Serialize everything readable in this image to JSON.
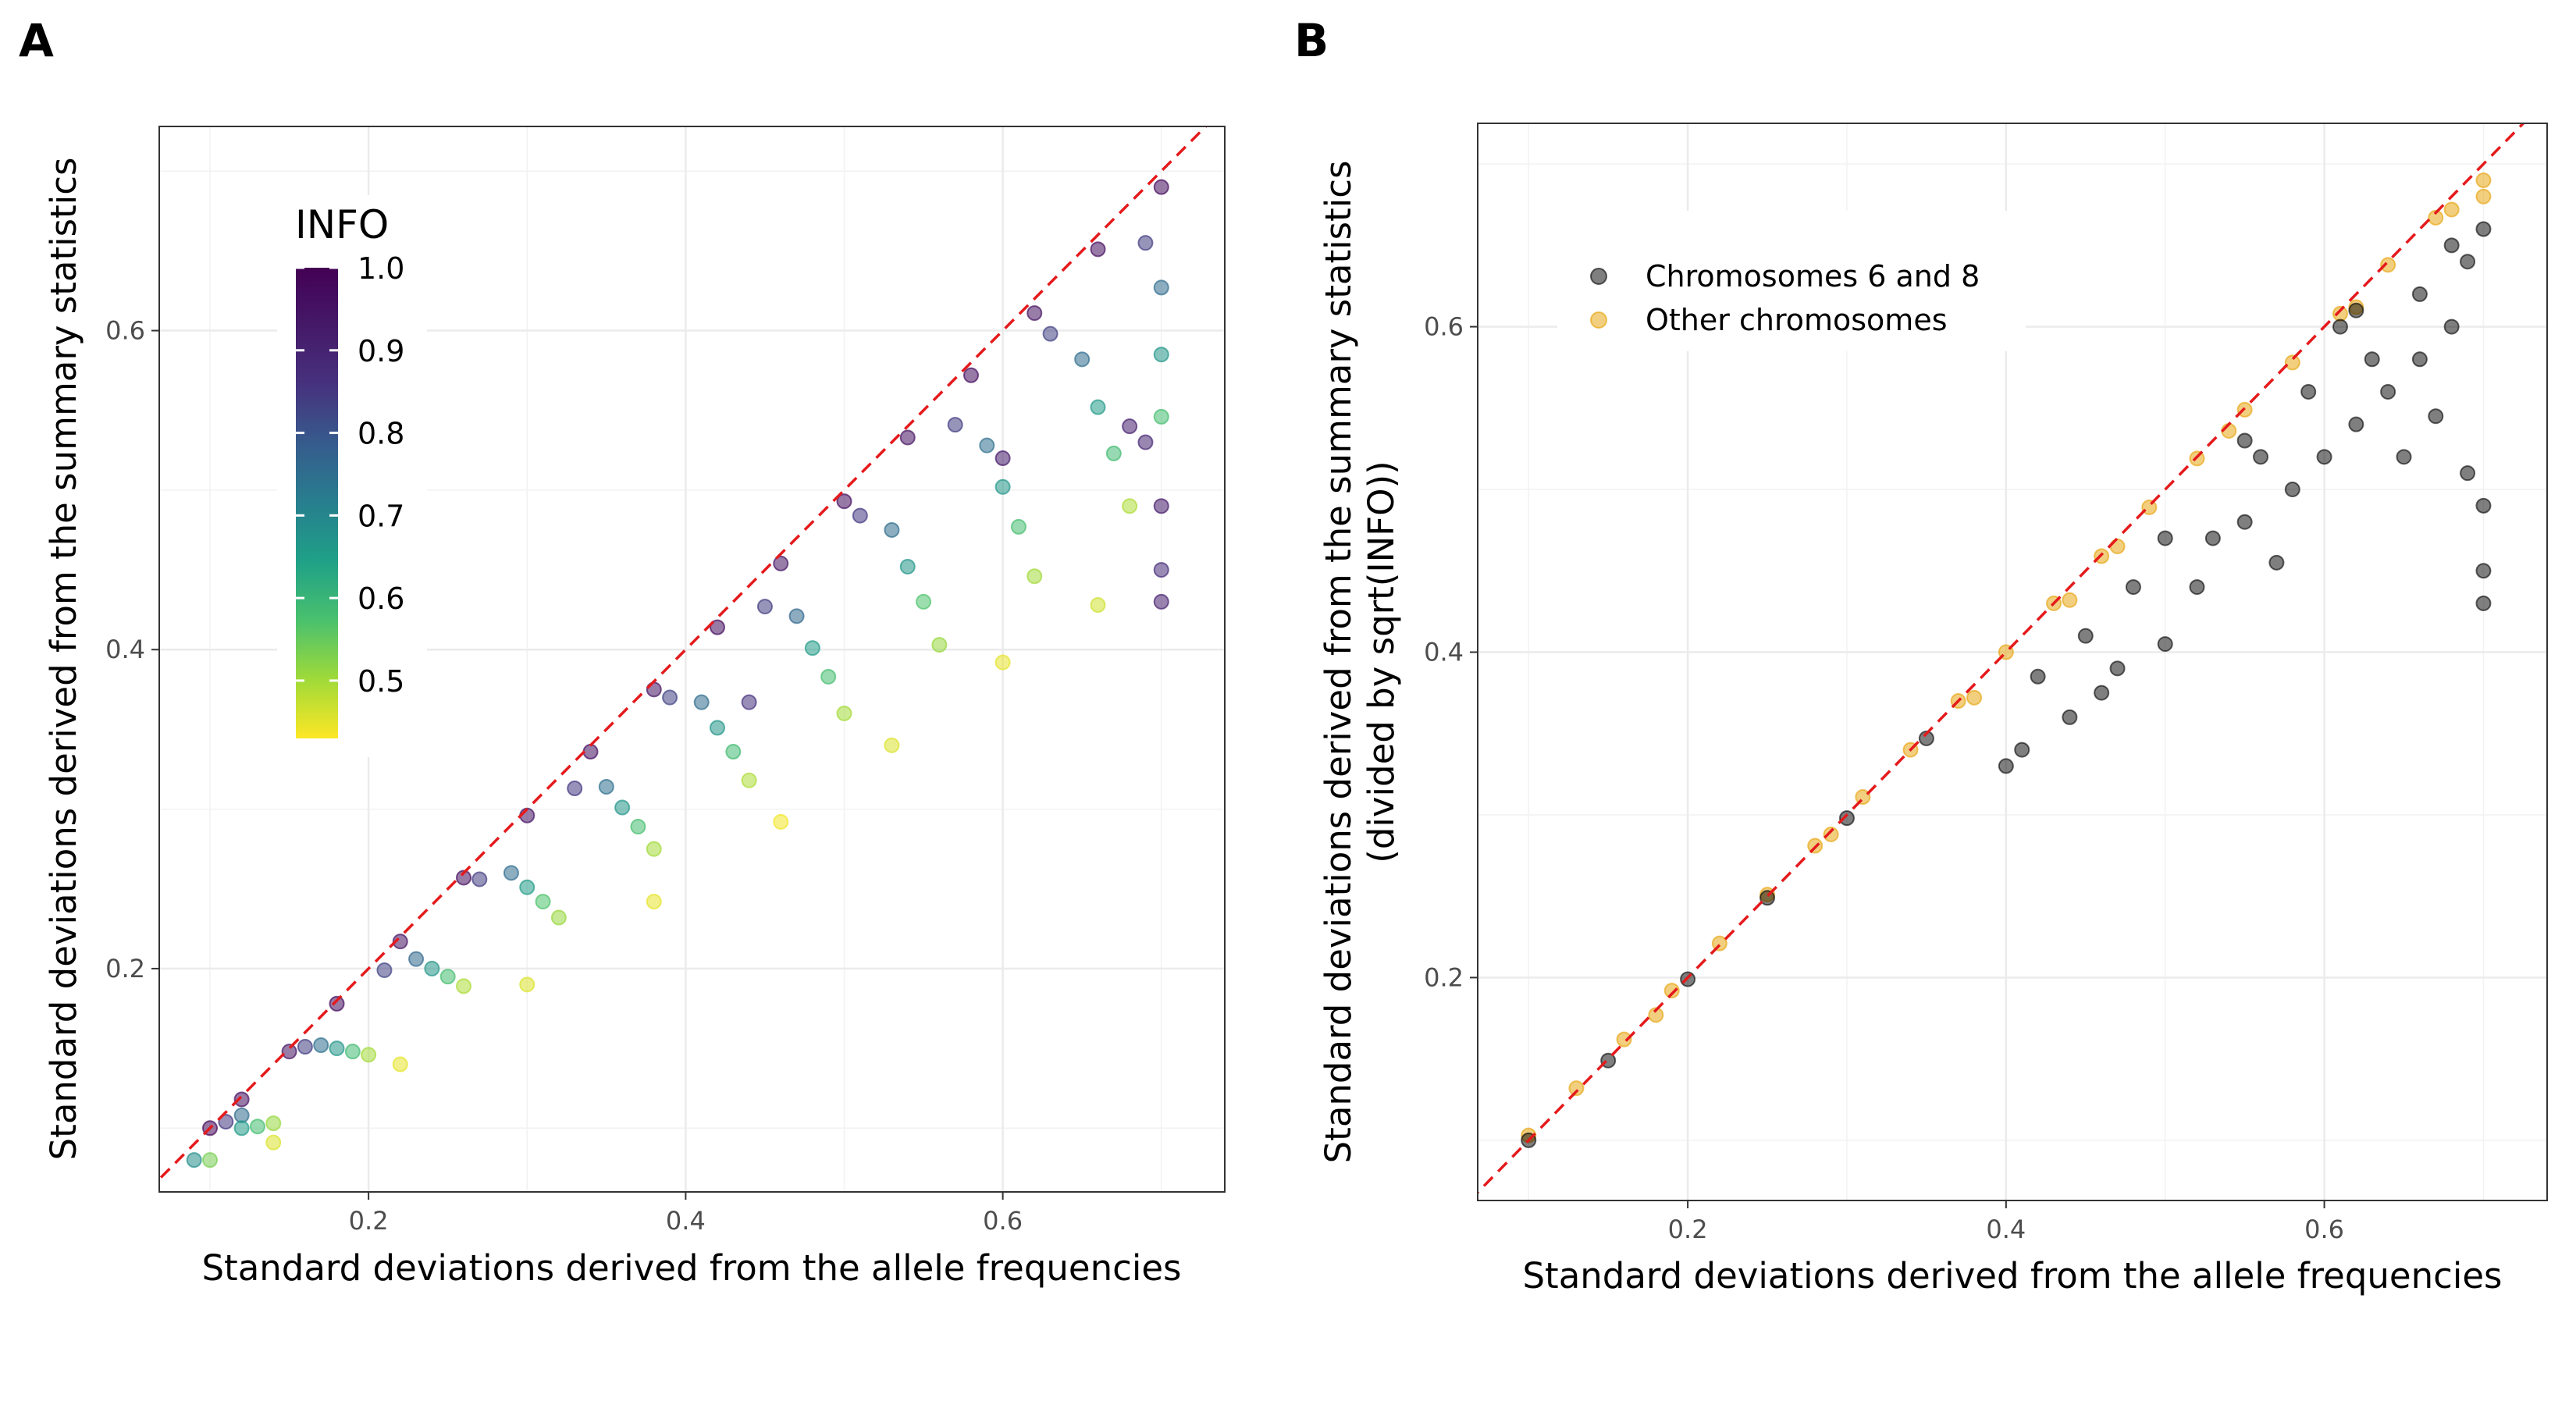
{
  "chart_data": [
    {
      "panel": "A",
      "type": "scatter",
      "xlabel": "Standard deviations derived from the allele frequencies",
      "ylabel": "Standard deviations derived from the summary statistics",
      "xlim": [
        0.068,
        0.74
      ],
      "ylim": [
        0.06,
        0.728
      ],
      "xticks": [
        0.2,
        0.4,
        0.6
      ],
      "yticks": [
        0.2,
        0.4,
        0.6
      ],
      "xtick_labels": [
        "0.2",
        "0.4",
        "0.6"
      ],
      "ytick_labels": [
        "0.2",
        "0.4",
        "0.6"
      ],
      "grid": true,
      "reference_line": {
        "slope": 1,
        "intercept": 0,
        "style": "dashed",
        "color": "#e41a1c"
      },
      "color_scale": {
        "title": "INFO",
        "palette": "viridis",
        "range": [
          0.43,
          1.0
        ],
        "ticks": [
          1.0,
          0.9,
          0.8,
          0.7,
          0.6,
          0.5
        ],
        "tick_labels": [
          "1.0",
          "0.9",
          "0.8",
          "0.7",
          "0.6",
          "0.5"
        ],
        "legend_position": "inside-top-left"
      },
      "points": [
        [
          0.1,
          0.1,
          0.99
        ],
        [
          0.12,
          0.118,
          0.98
        ],
        [
          0.15,
          0.148,
          0.97
        ],
        [
          0.18,
          0.178,
          0.98
        ],
        [
          0.22,
          0.217,
          0.97
        ],
        [
          0.26,
          0.257,
          0.98
        ],
        [
          0.3,
          0.296,
          0.97
        ],
        [
          0.34,
          0.336,
          0.98
        ],
        [
          0.38,
          0.375,
          0.97
        ],
        [
          0.42,
          0.414,
          0.98
        ],
        [
          0.46,
          0.454,
          0.97
        ],
        [
          0.5,
          0.493,
          0.98
        ],
        [
          0.54,
          0.533,
          0.97
        ],
        [
          0.58,
          0.572,
          0.98
        ],
        [
          0.62,
          0.611,
          0.97
        ],
        [
          0.66,
          0.651,
          0.98
        ],
        [
          0.7,
          0.69,
          0.98
        ],
        [
          0.11,
          0.104,
          0.91
        ],
        [
          0.16,
          0.151,
          0.9
        ],
        [
          0.21,
          0.199,
          0.89
        ],
        [
          0.27,
          0.256,
          0.9
        ],
        [
          0.33,
          0.313,
          0.91
        ],
        [
          0.39,
          0.37,
          0.89
        ],
        [
          0.45,
          0.427,
          0.9
        ],
        [
          0.51,
          0.484,
          0.91
        ],
        [
          0.57,
          0.541,
          0.9
        ],
        [
          0.63,
          0.598,
          0.89
        ],
        [
          0.69,
          0.655,
          0.9
        ],
        [
          0.12,
          0.108,
          0.8
        ],
        [
          0.17,
          0.152,
          0.79
        ],
        [
          0.23,
          0.206,
          0.81
        ],
        [
          0.29,
          0.26,
          0.8
        ],
        [
          0.35,
          0.314,
          0.79
        ],
        [
          0.41,
          0.367,
          0.8
        ],
        [
          0.47,
          0.421,
          0.81
        ],
        [
          0.53,
          0.475,
          0.8
        ],
        [
          0.59,
          0.528,
          0.79
        ],
        [
          0.65,
          0.582,
          0.8
        ],
        [
          0.7,
          0.627,
          0.8
        ],
        [
          0.12,
          0.1,
          0.69
        ],
        [
          0.18,
          0.15,
          0.7
        ],
        [
          0.24,
          0.2,
          0.7
        ],
        [
          0.3,
          0.251,
          0.69
        ],
        [
          0.36,
          0.301,
          0.7
        ],
        [
          0.42,
          0.351,
          0.7
        ],
        [
          0.48,
          0.401,
          0.69
        ],
        [
          0.54,
          0.452,
          0.7
        ],
        [
          0.6,
          0.502,
          0.7
        ],
        [
          0.66,
          0.552,
          0.69
        ],
        [
          0.7,
          0.585,
          0.7
        ],
        [
          0.13,
          0.101,
          0.6
        ],
        [
          0.19,
          0.148,
          0.61
        ],
        [
          0.25,
          0.195,
          0.6
        ],
        [
          0.31,
          0.242,
          0.59
        ],
        [
          0.37,
          0.289,
          0.6
        ],
        [
          0.43,
          0.336,
          0.61
        ],
        [
          0.49,
          0.383,
          0.6
        ],
        [
          0.55,
          0.43,
          0.59
        ],
        [
          0.61,
          0.477,
          0.6
        ],
        [
          0.67,
          0.523,
          0.61
        ],
        [
          0.7,
          0.546,
          0.6
        ],
        [
          0.14,
          0.103,
          0.52
        ],
        [
          0.2,
          0.146,
          0.51
        ],
        [
          0.26,
          0.189,
          0.5
        ],
        [
          0.32,
          0.232,
          0.52
        ],
        [
          0.38,
          0.275,
          0.51
        ],
        [
          0.44,
          0.318,
          0.5
        ],
        [
          0.5,
          0.36,
          0.51
        ],
        [
          0.56,
          0.403,
          0.52
        ],
        [
          0.62,
          0.446,
          0.51
        ],
        [
          0.68,
          0.49,
          0.5
        ],
        [
          0.14,
          0.091,
          0.46
        ],
        [
          0.22,
          0.14,
          0.45
        ],
        [
          0.3,
          0.19,
          0.46
        ],
        [
          0.38,
          0.242,
          0.45
        ],
        [
          0.46,
          0.292,
          0.44
        ],
        [
          0.53,
          0.34,
          0.46
        ],
        [
          0.6,
          0.392,
          0.45
        ],
        [
          0.66,
          0.428,
          0.47
        ],
        [
          0.09,
          0.08,
          0.72
        ],
        [
          0.1,
          0.08,
          0.55
        ],
        [
          0.7,
          0.43,
          0.95
        ],
        [
          0.7,
          0.45,
          0.93
        ],
        [
          0.7,
          0.49,
          0.96
        ],
        [
          0.69,
          0.53,
          0.94
        ],
        [
          0.6,
          0.52,
          0.96
        ],
        [
          0.44,
          0.367,
          0.92
        ],
        [
          0.68,
          0.54,
          0.95
        ]
      ]
    },
    {
      "panel": "B",
      "type": "scatter",
      "xlabel": "Standard deviations derived from the allele frequencies",
      "ylabel_lines": [
        "Standard deviations derived from the summary statistics",
        "(divided by sqrt(INFO))"
      ],
      "xlim": [
        0.068,
        0.74
      ],
      "ylim": [
        0.063,
        0.725
      ],
      "xticks": [
        0.2,
        0.4,
        0.6
      ],
      "yticks": [
        0.2,
        0.4,
        0.6
      ],
      "xtick_labels": [
        "0.2",
        "0.4",
        "0.6"
      ],
      "ytick_labels": [
        "0.2",
        "0.4",
        "0.6"
      ],
      "grid": true,
      "reference_line": {
        "slope": 1,
        "intercept": 0,
        "style": "dashed",
        "color": "#e41a1c"
      },
      "legend_position": "top-left",
      "series": [
        {
          "name": "Chromosomes 6 and 8",
          "color": "#000000",
          "points": [
            [
              0.1,
              0.1
            ],
            [
              0.15,
              0.149
            ],
            [
              0.2,
              0.199
            ],
            [
              0.25,
              0.249
            ],
            [
              0.3,
              0.298
            ],
            [
              0.35,
              0.347
            ],
            [
              0.4,
              0.33
            ],
            [
              0.41,
              0.34
            ],
            [
              0.44,
              0.36
            ],
            [
              0.46,
              0.375
            ],
            [
              0.47,
              0.39
            ],
            [
              0.5,
              0.405
            ],
            [
              0.52,
              0.44
            ],
            [
              0.55,
              0.48
            ],
            [
              0.58,
              0.5
            ],
            [
              0.6,
              0.52
            ],
            [
              0.62,
              0.54
            ],
            [
              0.64,
              0.56
            ],
            [
              0.66,
              0.58
            ],
            [
              0.68,
              0.6
            ],
            [
              0.7,
              0.43
            ],
            [
              0.7,
              0.45
            ],
            [
              0.7,
              0.49
            ],
            [
              0.69,
              0.51
            ],
            [
              0.67,
              0.545
            ],
            [
              0.63,
              0.58
            ],
            [
              0.57,
              0.455
            ],
            [
              0.65,
              0.52
            ],
            [
              0.69,
              0.64
            ],
            [
              0.7,
              0.66
            ],
            [
              0.61,
              0.6
            ],
            [
              0.56,
              0.52
            ],
            [
              0.53,
              0.47
            ],
            [
              0.48,
              0.44
            ],
            [
              0.45,
              0.41
            ],
            [
              0.5,
              0.47
            ],
            [
              0.59,
              0.56
            ],
            [
              0.66,
              0.62
            ],
            [
              0.68,
              0.65
            ],
            [
              0.62,
              0.61
            ],
            [
              0.42,
              0.385
            ],
            [
              0.55,
              0.53
            ]
          ]
        },
        {
          "name": "Other chromosomes",
          "color": "#e69f00",
          "points": [
            [
              0.1,
              0.103
            ],
            [
              0.13,
              0.132
            ],
            [
              0.16,
              0.162
            ],
            [
              0.19,
              0.192
            ],
            [
              0.22,
              0.221
            ],
            [
              0.25,
              0.251
            ],
            [
              0.28,
              0.281
            ],
            [
              0.31,
              0.311
            ],
            [
              0.34,
              0.34
            ],
            [
              0.37,
              0.37
            ],
            [
              0.4,
              0.4
            ],
            [
              0.43,
              0.43
            ],
            [
              0.46,
              0.459
            ],
            [
              0.49,
              0.489
            ],
            [
              0.52,
              0.519
            ],
            [
              0.55,
              0.549
            ],
            [
              0.58,
              0.578
            ],
            [
              0.61,
              0.608
            ],
            [
              0.64,
              0.638
            ],
            [
              0.67,
              0.667
            ],
            [
              0.7,
              0.69
            ],
            [
              0.7,
              0.68
            ],
            [
              0.38,
              0.372
            ],
            [
              0.44,
              0.432
            ],
            [
              0.54,
              0.536
            ],
            [
              0.62,
              0.612
            ],
            [
              0.68,
              0.672
            ],
            [
              0.18,
              0.177
            ],
            [
              0.29,
              0.288
            ],
            [
              0.47,
              0.465
            ]
          ]
        }
      ]
    }
  ]
}
